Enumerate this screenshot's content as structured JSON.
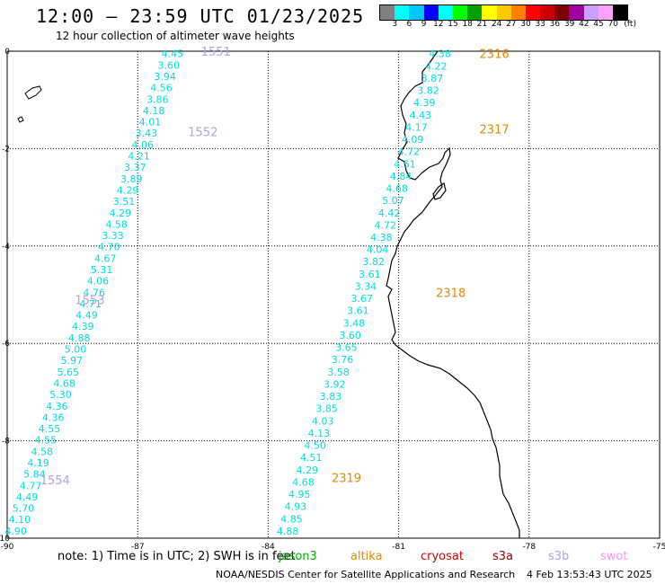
{
  "header": {
    "title": "12:00 – 23:59 UTC 01/23/2025",
    "subtitle": "12 hour collection of altimeter wave heights"
  },
  "colorbar": {
    "unit": "(ft)",
    "labels": [
      "3",
      "6",
      "9",
      "12",
      "15",
      "18",
      "21",
      "24",
      "27",
      "30",
      "33",
      "36",
      "39",
      "42",
      "45",
      "70"
    ],
    "colors": [
      "#808080",
      "#00ffff",
      "#00c8ff",
      "#0000ff",
      "#00ffff",
      "#00ff00",
      "#00a000",
      "#ffff00",
      "#ffc800",
      "#ff8000",
      "#ff0000",
      "#c80000",
      "#800000",
      "#a000a0",
      "#c8a0ff",
      "#ffa0ff",
      "#000000"
    ]
  },
  "map": {
    "x_ticks": [
      "-90",
      "-87",
      "-84",
      "-81",
      "-78",
      "-75"
    ],
    "y_ticks": [
      "0",
      "-2",
      "-4",
      "-6",
      "-8",
      "-10"
    ],
    "lon_range": [
      -90,
      -75
    ],
    "lat_range": [
      -10,
      0
    ],
    "label_color": "#00dcdc",
    "track_labels_color_west": "#b4a0e6",
    "track_labels_color_east": "#e08a00",
    "track_west": {
      "values": [
        "4.45",
        "3.60",
        "3.94",
        "4.56",
        "3.86",
        "4.18",
        "4.01",
        "3.43",
        "4.06",
        "4.21",
        "3.37",
        "3.89",
        "4.29",
        "3.51",
        "4.29",
        "4.58",
        "3.33",
        "4.70",
        "4.67",
        "5.31",
        "4.06",
        "4.76",
        "4.71",
        "4.49",
        "4.39",
        "4.88",
        "5.00",
        "5.97",
        "5.65",
        "4.68",
        "5.30",
        "4.36",
        "4.36",
        "4.55",
        "4.55",
        "4.58",
        "4.19",
        "5.84",
        "4.77",
        "4.49",
        "5.70",
        "4.10",
        "4.90"
      ],
      "lon_start": -86.2,
      "lon_end": -89.8,
      "lat_start": -0.05,
      "lat_end": -9.85
    },
    "track_east": {
      "values": [
        "4.38",
        "4.22",
        "3.87",
        "3.82",
        "4.39",
        "4.43",
        "4.17",
        "4.09",
        "4.72",
        "4.51",
        "4.84",
        "4.68",
        "5.07",
        "4.42",
        "4.72",
        "4.38",
        "4.04",
        "3.82",
        "3.61",
        "3.34",
        "3.67",
        "3.61",
        "3.48",
        "3.60",
        "3.65",
        "3.76",
        "3.58",
        "3.92",
        "3.83",
        "3.85",
        "4.03",
        "4.13",
        "4.50",
        "4.51",
        "4.29",
        "4.68",
        "4.95",
        "4.93",
        "4.85",
        "4.88"
      ],
      "lon_start": -80.05,
      "lon_end": -83.55,
      "lat_start": -0.05,
      "lat_end": -9.85
    },
    "time_labels": [
      {
        "text": "1551",
        "lon": -85.2,
        "lat": 0.0,
        "group": "west"
      },
      {
        "text": "1552",
        "lon": -85.5,
        "lat": -1.65,
        "group": "west"
      },
      {
        "text": "1553",
        "lon": -88.1,
        "lat": -5.1,
        "group": "west"
      },
      {
        "text": "1554",
        "lon": -88.9,
        "lat": -8.8,
        "group": "west"
      },
      {
        "text": "2316",
        "lon": -78.8,
        "lat": -0.05,
        "group": "east"
      },
      {
        "text": "2317",
        "lon": -78.8,
        "lat": -1.6,
        "group": "east"
      },
      {
        "text": "2318",
        "lon": -79.8,
        "lat": -4.95,
        "group": "east"
      },
      {
        "text": "2319",
        "lon": -82.2,
        "lat": -8.75,
        "group": "east"
      }
    ]
  },
  "footer": {
    "note": "note: 1) Time is in UTC; 2) SWH is in feet",
    "legend": [
      {
        "name": "jason3",
        "color": "#00b000"
      },
      {
        "name": "altika",
        "color": "#e08a00"
      },
      {
        "name": "cryosat",
        "color": "#d00000"
      },
      {
        "name": "s3a",
        "color": "#900000"
      },
      {
        "name": "s3b",
        "color": "#b4a0e6"
      },
      {
        "name": "swot",
        "color": "#ff90ff"
      }
    ],
    "credit": "NOAA/NESDIS Center for Satellite Applications and Research",
    "timestamp": "4 Feb 13:53:43 UTC 2025"
  }
}
